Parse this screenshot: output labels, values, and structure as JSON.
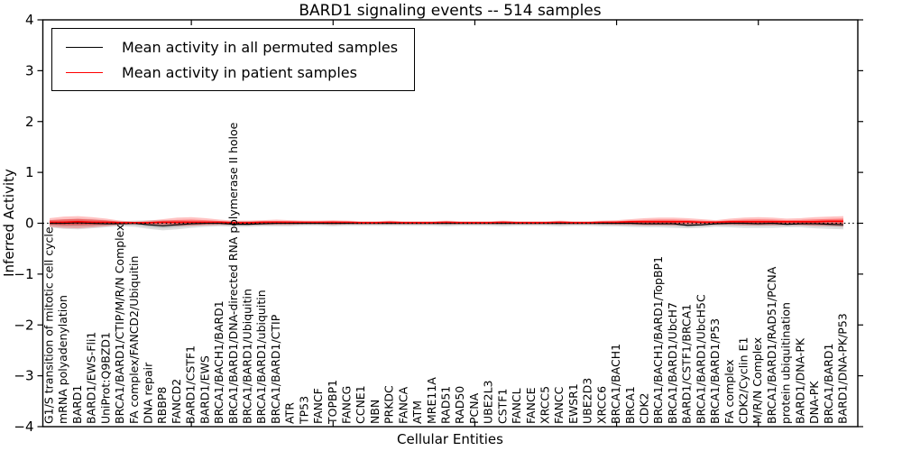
{
  "figure": {
    "title": "BARD1 signaling events -- 514 samples",
    "xlabel": "Cellular Entities",
    "ylabel": "Inferred Activity"
  },
  "legend": {
    "items": [
      {
        "label": "Mean activity in all permuted samples",
        "color": "#000000"
      },
      {
        "label": "Mean activity in patient samples",
        "color": "#ff0000"
      }
    ]
  },
  "chart_data": {
    "type": "line",
    "title": "BARD1 signaling events -- 514 samples",
    "xlabel": "Cellular Entities",
    "ylabel": "Inferred Activity",
    "ylim": [
      -4,
      4
    ],
    "grid": false,
    "legend_position": "upper left",
    "y_ticks": [
      4,
      3,
      2,
      1,
      0,
      -1,
      -2,
      -3,
      -4
    ],
    "y_tick_labels": [
      "4",
      "3",
      "2",
      "1",
      "0",
      "−1",
      "−2",
      "−3",
      "−4"
    ],
    "x_major_tick_indices": [
      10,
      20,
      30,
      40,
      50
    ],
    "categories": [
      "G1/S transition of mitotic cell cycle",
      "mRNA polyadenylation",
      "BARD1",
      "BARD1/EWS-Fli1",
      "UniProt:Q9BZD1",
      "BRCA1/BARD1/CTIP/M/R/N Complex",
      "FA complex/FANCD2/Ubiquitin",
      "DNA repair",
      "RBBP8",
      "FANCD2",
      "BARD1/CSTF1",
      "BARD1/EWS",
      "BRCA1/BACH1/BARD1",
      "BRCA1/BARD1/DNA-directed RNA polymerase II holoe",
      "BRCA1/BARD1/Ubiquitin",
      "BRCA1/BARD1/ubiquitin",
      "BRCA1/BARD1/CTIP",
      "ATR",
      "TP53",
      "FANCF",
      "TOPBP1",
      "FANCG",
      "CCNE1",
      "NBN",
      "PRKDC",
      "FANCA",
      "ATM",
      "MRE11A",
      "RAD51",
      "RAD50",
      "PCNA",
      "UBE2L3",
      "CSTF1",
      "FANCL",
      "FANCE",
      "XRCC5",
      "FANCC",
      "EWSR1",
      "UBE2D3",
      "XRCC6",
      "BRCA1/BACH1",
      "BRCA1",
      "CDK2",
      "BRCA1/BACH1/BARD1/TopBP1",
      "BRCA1/BARD1/UbcH7",
      "BARD1/CSTF1/BRCA1",
      "BRCA1/BARD1/UbcH5C",
      "BRCA1/BARD1/P53",
      "FA complex",
      "CDK2/Cyclin E1",
      "M/R/N Complex",
      "BRCA1/BARD1/RAD51/PCNA",
      "protein ubiquitination",
      "BARD1/DNA-PK",
      "DNA-PK",
      "BRCA1/BARD1",
      "BARD1/DNA-PK/P53"
    ],
    "series": [
      {
        "name": "Mean activity in all permuted samples",
        "color": "#000000",
        "line_style": "solid",
        "values": [
          0.0,
          0.0,
          0.01,
          0.0,
          -0.01,
          -0.01,
          0.0,
          -0.03,
          -0.05,
          -0.03,
          -0.01,
          0.0,
          0.0,
          -0.02,
          -0.02,
          -0.01,
          0.0,
          0.0,
          0.0,
          0.0,
          0.0,
          0.0,
          0.0,
          0.0,
          0.0,
          0.0,
          0.0,
          0.0,
          0.0,
          0.0,
          0.0,
          0.0,
          0.0,
          0.0,
          0.0,
          0.0,
          0.0,
          0.0,
          0.0,
          0.0,
          0.0,
          0.0,
          -0.01,
          -0.01,
          -0.01,
          -0.04,
          -0.03,
          -0.01,
          0.0,
          0.0,
          -0.01,
          0.0,
          -0.02,
          -0.01,
          -0.01,
          -0.02,
          -0.03
        ]
      },
      {
        "name": "Mean activity in patient samples",
        "color": "#ff0000",
        "line_style": "solid",
        "values": [
          0.02,
          0.02,
          0.03,
          0.02,
          0.02,
          0.01,
          0.01,
          0.01,
          0.02,
          0.02,
          0.02,
          0.02,
          0.02,
          0.01,
          0.01,
          0.02,
          0.02,
          0.02,
          0.02,
          0.02,
          0.02,
          0.02,
          0.01,
          0.01,
          0.02,
          0.01,
          0.01,
          0.01,
          0.02,
          0.01,
          0.01,
          0.01,
          0.02,
          0.01,
          0.01,
          0.01,
          0.02,
          0.01,
          0.01,
          0.02,
          0.02,
          0.03,
          0.03,
          0.03,
          0.03,
          0.03,
          0.02,
          0.02,
          0.03,
          0.03,
          0.03,
          0.03,
          0.03,
          0.03,
          0.03,
          0.04,
          0.04
        ]
      }
    ],
    "bands": [
      {
        "name": "permuted-activity-range",
        "color": "#000000",
        "outer_opacity": 0.13,
        "inner_opacity": 0.16,
        "upper": [
          0.06,
          0.08,
          0.09,
          0.08,
          0.06,
          0.04,
          0.05,
          0.06,
          0.06,
          0.05,
          0.04,
          0.04,
          0.04,
          0.04,
          0.04,
          0.04,
          0.04,
          0.04,
          0.03,
          0.03,
          0.04,
          0.03,
          0.03,
          0.03,
          0.03,
          0.03,
          0.03,
          0.03,
          0.04,
          0.03,
          0.03,
          0.03,
          0.04,
          0.03,
          0.03,
          0.03,
          0.04,
          0.03,
          0.03,
          0.04,
          0.04,
          0.04,
          0.05,
          0.05,
          0.05,
          0.04,
          0.04,
          0.04,
          0.04,
          0.05,
          0.05,
          0.05,
          0.04,
          0.04,
          0.05,
          0.05,
          0.05
        ],
        "lower": [
          -0.08,
          -0.11,
          -0.12,
          -0.1,
          -0.08,
          -0.06,
          -0.07,
          -0.11,
          -0.14,
          -0.12,
          -0.09,
          -0.07,
          -0.06,
          -0.07,
          -0.07,
          -0.06,
          -0.06,
          -0.06,
          -0.05,
          -0.05,
          -0.06,
          -0.05,
          -0.05,
          -0.05,
          -0.05,
          -0.05,
          -0.05,
          -0.05,
          -0.06,
          -0.05,
          -0.05,
          -0.05,
          -0.06,
          -0.05,
          -0.05,
          -0.05,
          -0.06,
          -0.05,
          -0.05,
          -0.06,
          -0.06,
          -0.07,
          -0.08,
          -0.08,
          -0.09,
          -0.1,
          -0.09,
          -0.07,
          -0.08,
          -0.09,
          -0.09,
          -0.09,
          -0.08,
          -0.08,
          -0.1,
          -0.11,
          -0.12
        ]
      },
      {
        "name": "patient-activity-range",
        "color": "#ff0000",
        "outer_opacity": 0.24,
        "inner_opacity": 0.38,
        "upper": [
          0.1,
          0.13,
          0.14,
          0.12,
          0.09,
          0.05,
          0.03,
          0.05,
          0.08,
          0.11,
          0.12,
          0.1,
          0.07,
          0.05,
          0.05,
          0.06,
          0.07,
          0.06,
          0.05,
          0.05,
          0.06,
          0.05,
          0.04,
          0.04,
          0.05,
          0.04,
          0.04,
          0.04,
          0.05,
          0.04,
          0.04,
          0.04,
          0.05,
          0.04,
          0.04,
          0.04,
          0.05,
          0.04,
          0.04,
          0.05,
          0.06,
          0.08,
          0.1,
          0.11,
          0.11,
          0.1,
          0.08,
          0.06,
          0.09,
          0.11,
          0.12,
          0.11,
          0.09,
          0.1,
          0.12,
          0.13,
          0.14
        ],
        "lower": [
          -0.07,
          -0.09,
          -0.1,
          -0.08,
          -0.06,
          -0.03,
          -0.02,
          -0.03,
          -0.04,
          -0.05,
          -0.05,
          -0.04,
          -0.03,
          -0.03,
          -0.03,
          -0.03,
          -0.03,
          -0.03,
          -0.02,
          -0.02,
          -0.03,
          -0.02,
          -0.02,
          -0.02,
          -0.02,
          -0.02,
          -0.02,
          -0.02,
          -0.02,
          -0.02,
          -0.02,
          -0.02,
          -0.02,
          -0.02,
          -0.02,
          -0.02,
          -0.02,
          -0.02,
          -0.02,
          -0.02,
          -0.03,
          -0.03,
          -0.04,
          -0.04,
          -0.04,
          -0.04,
          -0.03,
          -0.03,
          -0.03,
          -0.04,
          -0.04,
          -0.04,
          -0.03,
          -0.04,
          -0.05,
          -0.05,
          -0.06
        ]
      }
    ],
    "zero_line": {
      "value": 0,
      "style": "dotted",
      "color": "#000000"
    }
  }
}
